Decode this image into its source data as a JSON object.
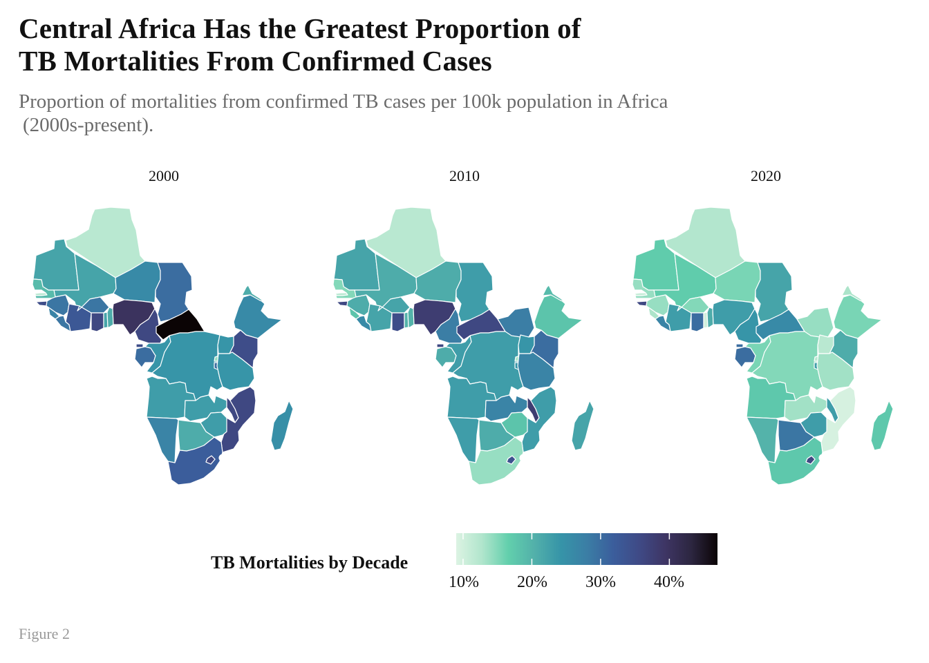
{
  "header": {
    "title_line1": "Central Africa Has the Greatest Proportion of",
    "title_line2": "TB Mortalities From Confirmed Cases",
    "subtitle_line1": "Proportion of mortalities from confirmed TB cases per 100k population in Africa",
    "subtitle_line2": "(2000s-present)."
  },
  "caption": "Figure 2",
  "colors": {
    "scale": [
      "#dcf3e3",
      "#b0e5cc",
      "#62cfac",
      "#52b0aa",
      "#3694a8",
      "#3b7ea5",
      "#3b5e9c",
      "#3f4a86",
      "#3e3564",
      "#2c2640",
      "#0b0405"
    ],
    "border": "#ffffff"
  },
  "chart_data": {
    "type": "choropleth",
    "title": "Central Africa Has the Greatest Proportion of TB Mortalities From Confirmed Cases",
    "subtitle": "Proportion of mortalities from confirmed TB cases per 100k population in Africa (2000s-present).",
    "panels": [
      "2000",
      "2010",
      "2020"
    ],
    "legend": {
      "title": "TB Mortalities by Decade",
      "ticks": [
        "10%",
        "20%",
        "30%",
        "40%"
      ],
      "tick_values": [
        10,
        20,
        30,
        40
      ],
      "range": [
        9,
        47
      ],
      "colormap": "mako (reversed)",
      "placement": "bottom"
    },
    "unit": "%",
    "values": {
      "Algeria": {
        "2000": 12,
        "2010": 12,
        "2020": 12.5
      },
      "Mauritania": {
        "2000": 22,
        "2010": 22,
        "2020": 17
      },
      "Mali": {
        "2000": 22,
        "2010": 21,
        "2020": 17
      },
      "Niger": {
        "2000": 26,
        "2010": 21,
        "2020": 15.5
      },
      "Chad": {
        "2000": 30,
        "2010": 23,
        "2020": 22
      },
      "Senegal": {
        "2000": 19,
        "2010": 15,
        "2020": 14
      },
      "Gambia": {
        "2000": 12,
        "2010": 12,
        "2020": 11
      },
      "Guinea-Bissau": {
        "2000": 35,
        "2010": 36,
        "2020": 36
      },
      "Guinea": {
        "2000": 29,
        "2010": 21,
        "2020": 14
      },
      "Sierra Leone": {
        "2000": 27,
        "2010": 18,
        "2020": 13
      },
      "Liberia": {
        "2000": 29,
        "2010": 26,
        "2020": 27
      },
      "Cote d'Ivoire": {
        "2000": 33,
        "2010": 22,
        "2020": 23
      },
      "Burkina Faso": {
        "2000": 29,
        "2010": 22,
        "2020": 15
      },
      "Ghana": {
        "2000": 36,
        "2010": 35,
        "2020": 30
      },
      "Togo": {
        "2000": 22,
        "2010": 20,
        "2020": 10
      },
      "Benin": {
        "2000": 21,
        "2010": 20,
        "2020": 21
      },
      "Nigeria": {
        "2000": 40,
        "2010": 38,
        "2020": 23
      },
      "Cameroon": {
        "2000": 36,
        "2010": 28,
        "2020": 24
      },
      "Central African Republic": {
        "2000": 47,
        "2010": 36,
        "2020": 26
      },
      "Equatorial Guinea": {
        "2000": 35,
        "2010": 36,
        "2020": 30
      },
      "Gabon": {
        "2000": 30,
        "2010": 21,
        "2020": 30
      },
      "Congo": {
        "2000": 24,
        "2010": 23,
        "2020": 15.5
      },
      "DR Congo": {
        "2000": 24,
        "2010": 23,
        "2020": 15
      },
      "South Sudan": {
        "2000": null,
        "2010": 28,
        "2020": 14
      },
      "Uganda": {
        "2000": 24,
        "2010": 24,
        "2020": 12
      },
      "Kenya": {
        "2000": 35,
        "2010": 30,
        "2020": 21
      },
      "Ethiopia": {
        "2000": 26,
        "2010": 18,
        "2020": 15.5
      },
      "Eritrea": {
        "2000": 21,
        "2010": 19,
        "2020": 13
      },
      "Rwanda": {
        "2000": 14,
        "2010": 13,
        "2020": 12
      },
      "Burundi": {
        "2000": 30,
        "2010": 24,
        "2020": 23
      },
      "Tanzania": {
        "2000": 24,
        "2010": 27,
        "2020": 13.5
      },
      "Angola": {
        "2000": 23,
        "2010": 23,
        "2020": 17.5
      },
      "Zambia": {
        "2000": 23,
        "2010": 27,
        "2020": 13.5
      },
      "Malawi": {
        "2000": 36,
        "2010": 38,
        "2020": 23
      },
      "Mozambique": {
        "2000": 36,
        "2010": 23,
        "2020": 9.5
      },
      "Namibia": {
        "2000": 27,
        "2010": 23,
        "2020": 20
      },
      "Botswana": {
        "2000": 21,
        "2010": 21,
        "2020": 29
      },
      "Zimbabwe": {
        "2000": 23,
        "2010": 18,
        "2020": 23
      },
      "South Africa": {
        "2000": 32,
        "2010": 14,
        "2020": 17.5
      },
      "Lesotho": {
        "2000": 36,
        "2010": 34,
        "2020": 36
      },
      "Madagascar": {
        "2000": 25,
        "2010": 22,
        "2020": 17.5
      }
    }
  }
}
